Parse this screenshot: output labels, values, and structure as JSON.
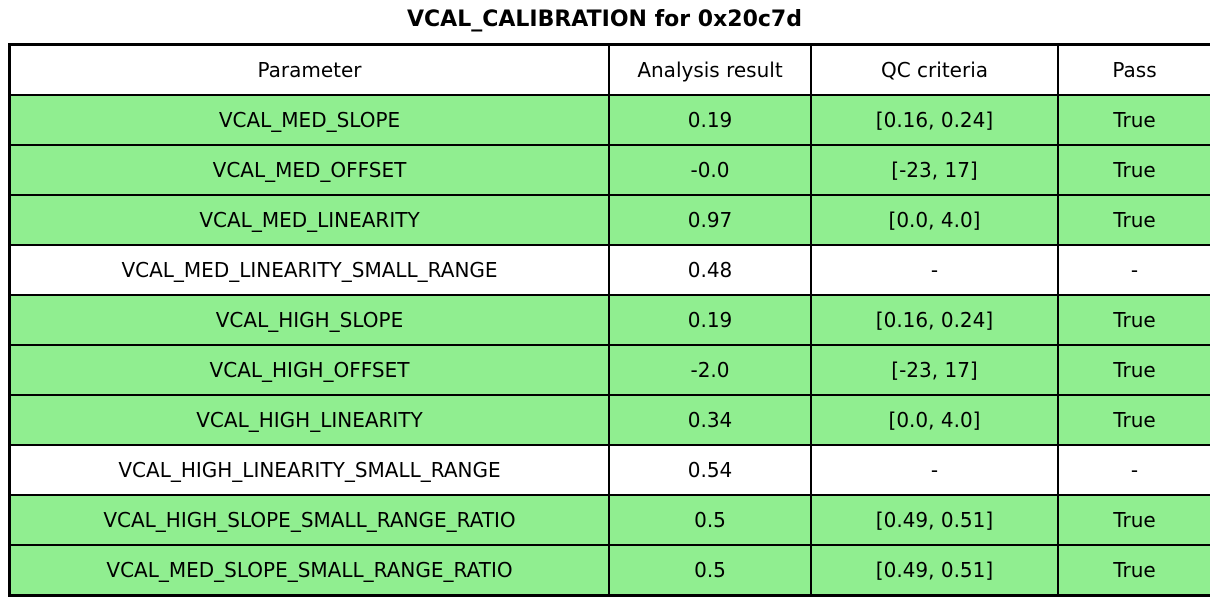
{
  "chart_data": {
    "type": "table",
    "title": "VCAL_CALIBRATION for 0x20c7d",
    "columns": [
      "Parameter",
      "Analysis result",
      "QC criteria",
      "Pass"
    ],
    "rows": [
      {
        "parameter": "VCAL_MED_SLOPE",
        "analysis_result": "0.19",
        "qc_criteria": "[0.16, 0.24]",
        "pass": "True",
        "highlighted": true
      },
      {
        "parameter": "VCAL_MED_OFFSET",
        "analysis_result": "-0.0",
        "qc_criteria": "[-23, 17]",
        "pass": "True",
        "highlighted": true
      },
      {
        "parameter": "VCAL_MED_LINEARITY",
        "analysis_result": "0.97",
        "qc_criteria": "[0.0, 4.0]",
        "pass": "True",
        "highlighted": true
      },
      {
        "parameter": "VCAL_MED_LINEARITY_SMALL_RANGE",
        "analysis_result": "0.48",
        "qc_criteria": "-",
        "pass": "-",
        "highlighted": false
      },
      {
        "parameter": "VCAL_HIGH_SLOPE",
        "analysis_result": "0.19",
        "qc_criteria": "[0.16, 0.24]",
        "pass": "True",
        "highlighted": true
      },
      {
        "parameter": "VCAL_HIGH_OFFSET",
        "analysis_result": "-2.0",
        "qc_criteria": "[-23, 17]",
        "pass": "True",
        "highlighted": true
      },
      {
        "parameter": "VCAL_HIGH_LINEARITY",
        "analysis_result": "0.34",
        "qc_criteria": "[0.0, 4.0]",
        "pass": "True",
        "highlighted": true
      },
      {
        "parameter": "VCAL_HIGH_LINEARITY_SMALL_RANGE",
        "analysis_result": "0.54",
        "qc_criteria": "-",
        "pass": "-",
        "highlighted": false
      },
      {
        "parameter": "VCAL_HIGH_SLOPE_SMALL_RANGE_RATIO",
        "analysis_result": "0.5",
        "qc_criteria": "[0.49, 0.51]",
        "pass": "True",
        "highlighted": true
      },
      {
        "parameter": "VCAL_MED_SLOPE_SMALL_RANGE_RATIO",
        "analysis_result": "0.5",
        "qc_criteria": "[0.49, 0.51]",
        "pass": "True",
        "highlighted": true
      }
    ],
    "colors": {
      "highlight_green": "#90EE90",
      "plain_white": "#ffffff",
      "border_black": "#000000",
      "text_black": "#000000"
    },
    "layout": {
      "legend": "none",
      "grid": "full-cell-borders",
      "header_background": "#ffffff"
    }
  }
}
